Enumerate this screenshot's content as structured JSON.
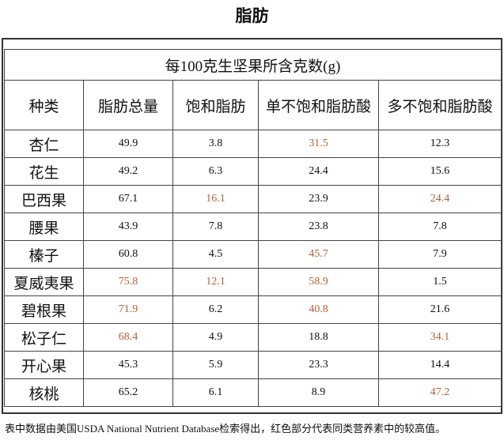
{
  "title": "脂肪",
  "table": {
    "caption": "每100克生坚果所含克数(g)",
    "header": [
      "种类",
      "脂肪总量",
      "饱和脂肪",
      "单不饱和脂肪酸",
      "多不饱和脂肪酸"
    ],
    "highlight_color": "#b0623a",
    "rows": [
      {
        "name": "杏仁",
        "cells": [
          "49.9",
          "3.8",
          "31.5",
          "12.3"
        ],
        "highlight": [
          2
        ]
      },
      {
        "name": "花生",
        "cells": [
          "49.2",
          "6.3",
          "24.4",
          "15.6"
        ],
        "highlight": []
      },
      {
        "name": "巴西果",
        "cells": [
          "67.1",
          "16.1",
          "23.9",
          "24.4"
        ],
        "highlight": [
          1,
          3
        ]
      },
      {
        "name": "腰果",
        "cells": [
          "43.9",
          "7.8",
          "23.8",
          "7.8"
        ],
        "highlight": []
      },
      {
        "name": "榛子",
        "cells": [
          "60.8",
          "4.5",
          "45.7",
          "7.9"
        ],
        "highlight": [
          2
        ]
      },
      {
        "name": "夏威夷果",
        "cells": [
          "75.8",
          "12.1",
          "58.9",
          "1.5"
        ],
        "highlight": [
          0,
          1,
          2
        ]
      },
      {
        "name": "碧根果",
        "cells": [
          "71.9",
          "6.2",
          "40.8",
          "21.6"
        ],
        "highlight": [
          0,
          2
        ]
      },
      {
        "name": "松子仁",
        "cells": [
          "68.4",
          "4.9",
          "18.8",
          "34.1"
        ],
        "highlight": [
          0,
          3
        ]
      },
      {
        "name": "开心果",
        "cells": [
          "45.3",
          "5.9",
          "23.3",
          "14.4"
        ],
        "highlight": []
      },
      {
        "name": "核桃",
        "cells": [
          "65.2",
          "6.1",
          "8.9",
          "47.2"
        ],
        "highlight": [
          3
        ]
      }
    ]
  },
  "footnote": "表中数据由美国USDA National Nutrient Database检索得出，红色部分代表同类营养素中的较高值。"
}
